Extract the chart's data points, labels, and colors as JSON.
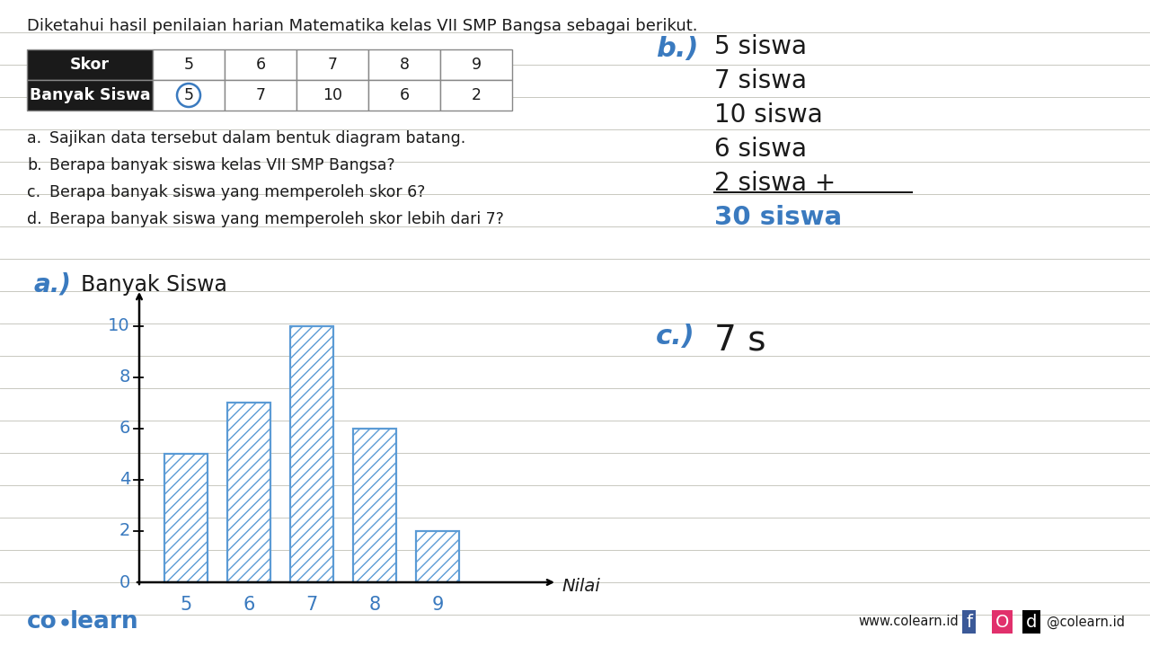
{
  "title": "Diketahui hasil penilaian harian Matematika kelas VII SMP Bangsa sebagai berikut.",
  "table_headers": [
    "Skor",
    "5",
    "6",
    "7",
    "8",
    "9"
  ],
  "table_row_label": "Banyak Siswa",
  "table_values": [
    5,
    7,
    10,
    6,
    2
  ],
  "questions": [
    [
      "a.",
      "Sajikan data tersebut dalam bentuk diagram batang."
    ],
    [
      "b.",
      "Berapa banyak siswa kelas VII SMP Bangsa?"
    ],
    [
      "c.",
      "Berapa banyak siswa yang memperoleh skor 6?"
    ],
    [
      "d.",
      "Berapa banyak siswa yang memperoleh skor lebih dari 7?"
    ]
  ],
  "chart_ylabel": "Banyak Siswa",
  "chart_xlabel": "Nilai",
  "bar_values": [
    5,
    7,
    10,
    6,
    2
  ],
  "bar_categories": [
    "5",
    "6",
    "7",
    "8",
    "9"
  ],
  "ytick_labels": [
    "0",
    "2",
    "4",
    "6",
    "8",
    "10"
  ],
  "ytick_vals": [
    0,
    2,
    4,
    6,
    8,
    10
  ],
  "answer_b_lines": [
    "5 siswa",
    "7 siswa",
    "10 siswa",
    "6 siswa",
    "2 siswa +",
    "30 siswa"
  ],
  "answer_b_label": "b.)",
  "answer_c_label": "c.)",
  "answer_c_text": "7 s",
  "answer_a_label": "a.)",
  "bg_color": "#ffffff",
  "ruled_line_color": "#c8c8c0",
  "bar_hatch_color": "#5b9bd5",
  "bar_edge_color": "#5b9bd5",
  "text_color": "#1a1a1a",
  "blue_color": "#3a7abf",
  "header_bg": "#1a1a1a",
  "header_fg": "#ffffff",
  "table_border": "#888888",
  "colearn_color": "#3a7abf",
  "answer_text_color": "#1a1a1a",
  "answer_total_color": "#3a7abf"
}
